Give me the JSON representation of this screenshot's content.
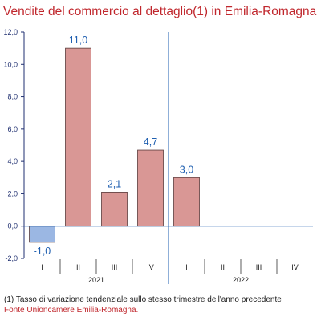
{
  "chart_data": {
    "type": "bar",
    "title": "Vendite del commercio al dettaglio(1) in Emilia-Romagna",
    "categories": [
      "I",
      "II",
      "III",
      "IV",
      "I",
      "II",
      "III",
      "IV"
    ],
    "groups": [
      {
        "label": "2021",
        "categories": [
          "I",
          "II",
          "III",
          "IV"
        ]
      },
      {
        "label": "2022",
        "categories": [
          "I",
          "II",
          "III",
          "IV"
        ]
      }
    ],
    "values": [
      -1.0,
      11.0,
      2.1,
      4.7,
      3.0,
      null,
      null,
      null
    ],
    "data_labels": [
      "-1,0",
      "11,0",
      "2,1",
      "4,7",
      "3,0",
      "",
      "",
      ""
    ],
    "ylim": [
      -2.0,
      12.0
    ],
    "yticks": [
      -2.0,
      0.0,
      2.0,
      4.0,
      6.0,
      8.0,
      10.0,
      12.0
    ],
    "ytick_labels": [
      "-2,0",
      "0,0",
      "2,0",
      "4,0",
      "6,0",
      "8,0",
      "10,0",
      "12,0"
    ],
    "xlabel": "",
    "ylabel": "",
    "grid": false,
    "colors": {
      "positive_bar": "#d99795",
      "negative_bar": "#9bb7e3",
      "bar_border": "#5a3c3c",
      "axis": "#1f2f70",
      "zero_line": "#1f5fb0",
      "data_label": "#1f5fb0"
    }
  },
  "footnote": "(1) Tasso di variazione tendenziale sullo stesso trimestre dell'anno precedente",
  "source": "Fonte Unioncamere Emilia-Romagna."
}
